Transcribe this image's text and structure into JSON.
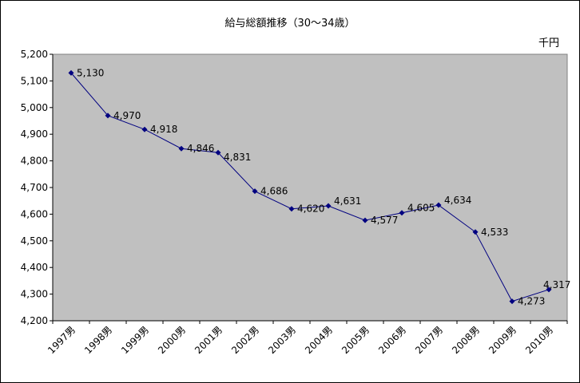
{
  "chart_data": {
    "type": "line",
    "title": "給与総額推移（30～34歳）",
    "unit": "千円",
    "categories": [
      "1997男",
      "1998男",
      "1999男",
      "2000男",
      "2001男",
      "2002男",
      "2003男",
      "2004男",
      "2005男",
      "2006男",
      "2007男",
      "2008男",
      "2009男",
      "2010男"
    ],
    "series": [
      {
        "values": [
          5130,
          4970,
          4918,
          4846,
          4831,
          4686,
          4620,
          4631,
          4577,
          4605,
          4634,
          4533,
          4273,
          4317
        ]
      }
    ],
    "data_labels": [
      "5,130",
      "4,970",
      "4,918",
      "4,846",
      "4,831",
      "4,686",
      "4,620",
      "4,631",
      "4,577",
      "4,605",
      "4,634",
      "4,533",
      "4,273",
      "4,317"
    ],
    "ylim": [
      4200,
      5200
    ],
    "yticks": [
      "4,200",
      "4,300",
      "4,400",
      "4,500",
      "4,600",
      "4,700",
      "4,800",
      "4,900",
      "5,000",
      "5,100",
      "5,200"
    ],
    "grid": false,
    "legend": "none",
    "plot_background": "#c0c0c0",
    "line_color": "#000080"
  }
}
